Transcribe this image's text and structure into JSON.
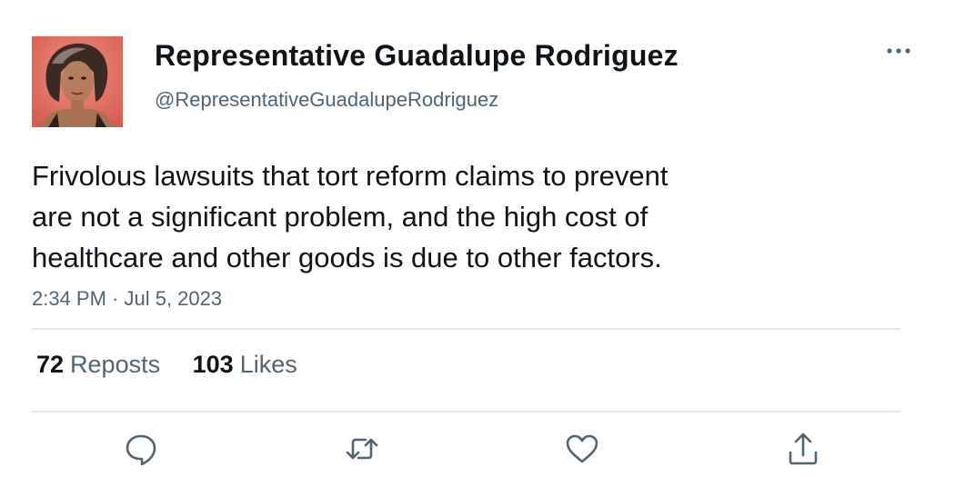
{
  "author": {
    "display_name": "Representative Guadalupe Rodriguez",
    "handle": "@RepresentativeGuadalupeRodriguez",
    "avatar_icon": "profile-photo"
  },
  "tweet": {
    "text_lines": [
      "Frivolous lawsuits that tort reform claims to prevent",
      "are not a significant problem, and the high cost of",
      "healthcare and other goods is due to other factors."
    ],
    "timestamp": "2:34 PM · Jul 5, 2023"
  },
  "stats": {
    "reposts_count": "72",
    "reposts_label": "Reposts",
    "likes_count": "103",
    "likes_label": "Likes"
  },
  "actions": {
    "icons": [
      "reply-icon",
      "repost-icon",
      "like-icon",
      "share-icon"
    ]
  },
  "colors": {
    "text_primary": "#0f1419",
    "text_secondary": "#536471",
    "divider": "#e6e9eb",
    "icon": "#536471"
  }
}
